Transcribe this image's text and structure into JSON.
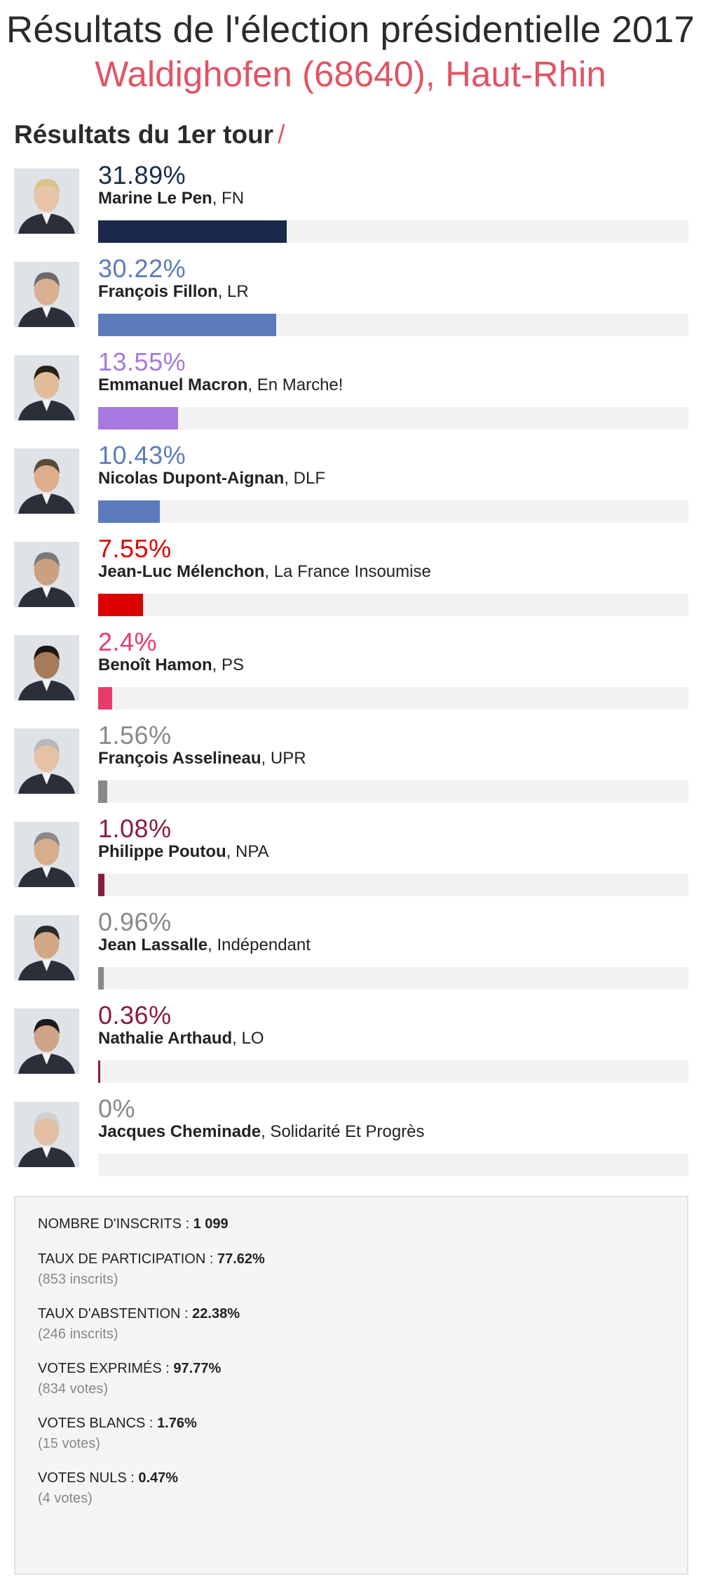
{
  "header": {
    "title": "Résultats de l'élection présidentielle 2017",
    "subtitle": "Waldighofen (68640), Haut-Rhin"
  },
  "section": {
    "title": "Résultats du 1er tour",
    "slash": "/"
  },
  "candidates": [
    {
      "pct_label": "31.89%",
      "pct": 31.89,
      "name": "Marine Le Pen",
      "party": ", FN",
      "color": "#1b2a4a"
    },
    {
      "pct_label": "30.22%",
      "pct": 30.22,
      "name": "François Fillon",
      "party": ", LR",
      "color": "#5b7bbb"
    },
    {
      "pct_label": "13.55%",
      "pct": 13.55,
      "name": "Emmanuel Macron",
      "party": ", En Marche!",
      "color": "#a678e0"
    },
    {
      "pct_label": "10.43%",
      "pct": 10.43,
      "name": "Nicolas Dupont-Aignan",
      "party": ", DLF",
      "color": "#5b7bbb"
    },
    {
      "pct_label": "7.55%",
      "pct": 7.55,
      "name": "Jean-Luc Mélenchon",
      "party": ", La France Insoumise",
      "color": "#dd0000"
    },
    {
      "pct_label": "2.4%",
      "pct": 2.4,
      "name": "Benoît Hamon",
      "party": ", PS",
      "color": "#e93a6c"
    },
    {
      "pct_label": "1.56%",
      "pct": 1.56,
      "name": "François Asselineau",
      "party": ", UPR",
      "color": "#888888"
    },
    {
      "pct_label": "1.08%",
      "pct": 1.08,
      "name": "Philippe Poutou",
      "party": ", NPA",
      "color": "#8b1a43"
    },
    {
      "pct_label": "0.96%",
      "pct": 0.96,
      "name": "Jean Lassalle",
      "party": ", Indépendant",
      "color": "#888888"
    },
    {
      "pct_label": "0.36%",
      "pct": 0.36,
      "name": "Nathalie Arthaud",
      "party": ", LO",
      "color": "#8b1a43"
    },
    {
      "pct_label": "0%",
      "pct": 0,
      "name": "Jacques Cheminade",
      "party": ", Solidarité Et Progrès",
      "color": "#888888"
    }
  ],
  "stats": [
    {
      "label": "NOMBRE D'INSCRITS : ",
      "value": "1 099",
      "sub": ""
    },
    {
      "label": "TAUX DE PARTICIPATION : ",
      "value": "77.62%",
      "sub": "(853 inscrits)"
    },
    {
      "label": "TAUX D'ABSTENTION : ",
      "value": "22.38%",
      "sub": "(246 inscrits)"
    },
    {
      "label": "VOTES EXPRIMÉS : ",
      "value": "97.77%",
      "sub": "(834 votes)"
    },
    {
      "label": "VOTES BLANCS : ",
      "value": "1.76%",
      "sub": "(15 votes)"
    },
    {
      "label": "VOTES NULS : ",
      "value": "0.47%",
      "sub": "(4 votes)"
    }
  ]
}
